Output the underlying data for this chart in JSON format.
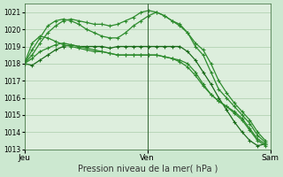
{
  "title": "Pression niveau de la mer( hPa )",
  "background_color": "#cce8d0",
  "plot_bg_color": "#ddeedd",
  "grid_color": "#aaccaa",
  "line_colors": [
    "#1a6b1a",
    "#2d8b2d",
    "#2d8b2d",
    "#2d8b2d",
    "#2d8b2d"
  ],
  "ylim": [
    1013,
    1021.5
  ],
  "yticks": [
    1013,
    1014,
    1015,
    1016,
    1017,
    1018,
    1019,
    1020,
    1021
  ],
  "day_labels": [
    "Jeu",
    "Ven",
    "Sam"
  ],
  "day_positions": [
    0,
    24,
    48
  ],
  "series": [
    [
      1018.0,
      1017.9,
      1018.2,
      1018.5,
      1018.8,
      1019.0,
      1019.1,
      1019.0,
      1019.0,
      1019.0,
      1019.0,
      1018.9,
      1019.0,
      1019.0,
      1019.0,
      1019.0,
      1019.0,
      1019.0,
      1019.0,
      1019.0,
      1019.0,
      1018.7,
      1018.2,
      1017.5,
      1016.8,
      1016.0,
      1015.3,
      1014.6,
      1014.0,
      1013.5,
      1013.2,
      1013.3
    ],
    [
      1018.0,
      1018.5,
      1019.2,
      1019.8,
      1020.2,
      1020.5,
      1020.6,
      1020.5,
      1020.4,
      1020.3,
      1020.3,
      1020.2,
      1020.3,
      1020.5,
      1020.7,
      1021.0,
      1021.1,
      1021.0,
      1020.8,
      1020.5,
      1020.3,
      1019.8,
      1019.0,
      1018.5,
      1017.5,
      1016.5,
      1016.0,
      1015.5,
      1015.0,
      1014.5,
      1013.8,
      1013.4
    ],
    [
      1018.0,
      1018.8,
      1019.5,
      1020.2,
      1020.5,
      1020.6,
      1020.5,
      1020.3,
      1020.0,
      1019.8,
      1019.6,
      1019.5,
      1019.5,
      1019.8,
      1020.2,
      1020.5,
      1020.8,
      1021.0,
      1020.8,
      1020.5,
      1020.2,
      1019.8,
      1019.2,
      1018.8,
      1018.0,
      1017.0,
      1016.3,
      1015.7,
      1015.2,
      1014.7,
      1014.0,
      1013.5
    ],
    [
      1018.0,
      1019.2,
      1019.6,
      1019.5,
      1019.3,
      1019.1,
      1019.0,
      1018.9,
      1018.8,
      1018.7,
      1018.7,
      1018.6,
      1018.5,
      1018.5,
      1018.5,
      1018.5,
      1018.5,
      1018.5,
      1018.4,
      1018.3,
      1018.2,
      1018.0,
      1017.5,
      1016.8,
      1016.2,
      1015.8,
      1015.5,
      1015.2,
      1014.8,
      1014.2,
      1013.6,
      1013.3
    ],
    [
      1018.0,
      1018.3,
      1018.7,
      1018.9,
      1019.1,
      1019.2,
      1019.1,
      1019.0,
      1018.9,
      1018.8,
      1018.7,
      1018.6,
      1018.5,
      1018.5,
      1018.5,
      1018.5,
      1018.5,
      1018.5,
      1018.4,
      1018.3,
      1018.1,
      1017.8,
      1017.3,
      1016.7,
      1016.2,
      1015.8,
      1015.5,
      1015.1,
      1014.7,
      1014.1,
      1013.5,
      1013.2
    ]
  ]
}
